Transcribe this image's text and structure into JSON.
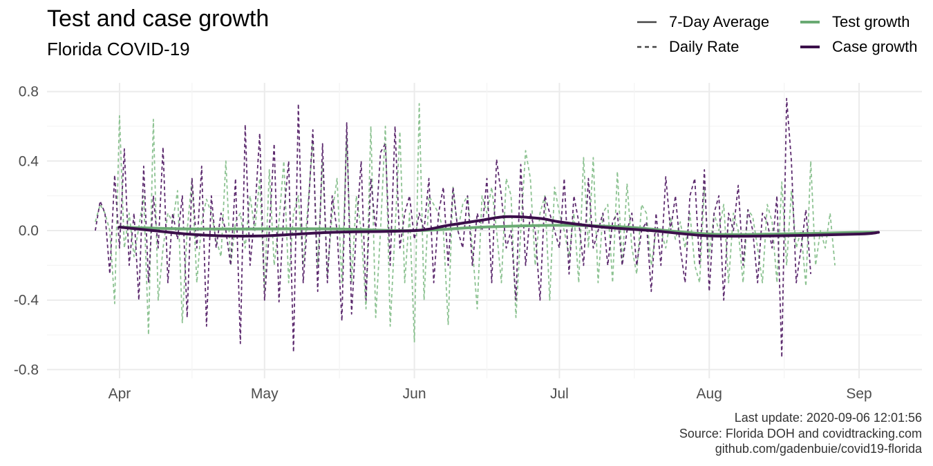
{
  "chart_data": {
    "type": "line",
    "title": "Test and case growth",
    "subtitle": "Florida COVID-19",
    "xlabel": "",
    "ylabel": "",
    "x_ticks": [
      "Apr",
      "May",
      "Jun",
      "Jul",
      "Aug",
      "Sep"
    ],
    "x_tick_dates": [
      "2020-04-01",
      "2020-05-01",
      "2020-06-01",
      "2020-07-01",
      "2020-08-01",
      "2020-09-01"
    ],
    "y_ticks": [
      "0.8",
      "0.4",
      "0.0",
      "-0.4",
      "-0.8"
    ],
    "y_tick_values": [
      0.8,
      0.4,
      0.0,
      -0.4,
      -0.8
    ],
    "xlim": [
      "2020-03-17",
      "2020-09-14"
    ],
    "ylim": [
      -0.85,
      0.85
    ],
    "grid": true,
    "legend_position": "top-right",
    "legend": {
      "linetype": [
        {
          "label": "7-Day Average",
          "style": "solid"
        },
        {
          "label": "Daily Rate",
          "style": "dashed"
        }
      ],
      "color": [
        {
          "label": "Test growth",
          "color": "#6aaa73"
        },
        {
          "label": "Case growth",
          "color": "#3b0f4a"
        }
      ]
    },
    "series": [
      {
        "name": "Test growth",
        "measure": "7-Day Average",
        "style": "solid",
        "color": "#6aaa73",
        "points": [
          [
            "2020-04-01",
            0.02
          ],
          [
            "2020-04-15",
            0.01
          ],
          [
            "2020-05-01",
            0.01
          ],
          [
            "2020-05-15",
            0.01
          ],
          [
            "2020-06-01",
            0.0
          ],
          [
            "2020-06-15",
            0.02
          ],
          [
            "2020-07-01",
            0.03
          ],
          [
            "2020-07-15",
            0.02
          ],
          [
            "2020-08-01",
            -0.02
          ],
          [
            "2020-08-15",
            -0.02
          ],
          [
            "2020-09-01",
            -0.01
          ],
          [
            "2020-09-05",
            -0.01
          ]
        ]
      },
      {
        "name": "Case growth",
        "measure": "7-Day Average",
        "style": "solid",
        "color": "#3b0f4a",
        "points": [
          [
            "2020-04-01",
            0.02
          ],
          [
            "2020-04-08",
            0.0
          ],
          [
            "2020-04-15",
            -0.02
          ],
          [
            "2020-04-22",
            -0.03
          ],
          [
            "2020-05-01",
            -0.03
          ],
          [
            "2020-05-15",
            -0.01
          ],
          [
            "2020-06-01",
            0.0
          ],
          [
            "2020-06-08",
            0.03
          ],
          [
            "2020-06-15",
            0.06
          ],
          [
            "2020-06-20",
            0.08
          ],
          [
            "2020-06-27",
            0.07
          ],
          [
            "2020-07-01",
            0.05
          ],
          [
            "2020-07-10",
            0.02
          ],
          [
            "2020-07-20",
            0.0
          ],
          [
            "2020-08-01",
            -0.03
          ],
          [
            "2020-08-15",
            -0.03
          ],
          [
            "2020-09-01",
            -0.02
          ],
          [
            "2020-09-05",
            -0.01
          ]
        ]
      },
      {
        "name": "Test growth",
        "measure": "Daily Rate",
        "style": "dashed",
        "color": "#8cc291",
        "start": "2020-03-27",
        "values": [
          0.05,
          0.15,
          0.1,
          0.0,
          -0.42,
          0.66,
          -0.1,
          0.1,
          -0.15,
          0.02,
          0.2,
          -0.6,
          0.64,
          -0.4,
          -0.1,
          0.1,
          0.05,
          0.23,
          -0.53,
          0.0,
          0.3,
          -0.3,
          0.05,
          0.18,
          0.1,
          -0.05,
          -0.15,
          0.4,
          -0.2,
          0.05,
          0.1,
          -0.1,
          0.2,
          0.0,
          0.3,
          -0.35,
          0.35,
          -0.2,
          0.05,
          0.4,
          -0.3,
          0.1,
          0.2,
          -0.2,
          0.15,
          0.52,
          -0.2,
          0.4,
          -0.25,
          0.1,
          0.3,
          -0.3,
          0.55,
          -0.3,
          0.2,
          0.0,
          -0.45,
          0.6,
          -0.5,
          0.0,
          0.6,
          -0.55,
          0.0,
          0.57,
          -0.3,
          0.1,
          -0.64,
          0.73,
          -0.4,
          0.2,
          0.15,
          0.1,
          0.0,
          -0.54,
          0.25,
          0.0,
          0.15,
          0.2,
          -0.1,
          -0.45,
          0.2,
          0.1,
          0.25,
          0.0,
          -0.3,
          0.3,
          0.2,
          -0.5,
          0.0,
          0.46,
          0.3,
          -0.2,
          0.1,
          0.2,
          -0.4,
          0.25,
          0.1,
          0.0,
          -0.15,
          0.1,
          -0.3,
          0.42,
          -0.1,
          0.42,
          -0.3,
          0.1,
          0.15,
          -0.3,
          0.34,
          -0.2,
          0.27,
          -0.1,
          -0.25,
          0.15,
          0.1,
          -0.2,
          0.0,
          0.0,
          -0.1,
          0.07,
          -0.05,
          0.05,
          -0.1,
          0.1,
          -0.2,
          -0.3,
          0.25,
          -0.15,
          0.1,
          0.0,
          0.15,
          -0.3,
          0.1,
          0.0,
          -0.3,
          0.12,
          0.08,
          -0.1,
          -0.3,
          0.15,
          0.05,
          -0.3,
          0.28,
          -0.2,
          0.23,
          -0.1,
          0.0,
          -0.32,
          0.4,
          -0.2,
          0.0,
          -0.1,
          0.1,
          -0.2
        ]
      },
      {
        "name": "Case growth",
        "measure": "Daily Rate",
        "style": "dashed",
        "color": "#5c2a6e",
        "start": "2020-03-27",
        "values": [
          0.0,
          0.17,
          0.1,
          -0.25,
          0.32,
          -0.1,
          0.47,
          -0.2,
          0.1,
          -0.4,
          0.37,
          -0.3,
          0.2,
          -0.1,
          0.48,
          -0.3,
          0.1,
          -0.05,
          0.2,
          -0.5,
          0.3,
          -0.1,
          0.37,
          -0.55,
          0.2,
          -0.1,
          0.1,
          0.0,
          -0.2,
          0.3,
          -0.65,
          0.61,
          -0.2,
          0.1,
          0.56,
          -0.4,
          0.0,
          0.5,
          -0.41,
          0.1,
          0.4,
          -0.7,
          0.73,
          -0.3,
          0.1,
          0.58,
          -0.35,
          0.5,
          -0.3,
          0.2,
          0.0,
          -0.52,
          0.62,
          -0.48,
          0.0,
          0.4,
          -0.4,
          0.3,
          0.0,
          0.45,
          0.5,
          -0.2,
          0.6,
          -0.1,
          0.1,
          0.2,
          -0.05,
          0.1,
          0.0,
          0.3,
          -0.3,
          0.1,
          0.25,
          -0.2,
          0.25,
          0.0,
          -0.1,
          0.2,
          -0.2,
          0.1,
          0.0,
          0.3,
          -0.3,
          0.41,
          0.2,
          -0.1,
          0.0,
          -0.4,
          0.38,
          -0.2,
          0.1,
          0.0,
          -0.4,
          0.2,
          0.1,
          0.0,
          -0.1,
          0.3,
          -0.25,
          0.2,
          0.05,
          -0.2,
          0.3,
          -0.1,
          0.0,
          0.1,
          -0.2,
          0.05,
          0.1,
          -0.2,
          0.0,
          0.1,
          -0.2,
          0.0,
          0.05,
          -0.35,
          0.1,
          -0.2,
          0.31,
          0.0,
          0.2,
          -0.1,
          -0.3,
          0.2,
          0.3,
          -0.2,
          0.35,
          -0.35,
          0.1,
          0.2,
          -0.4,
          0.1,
          0.0,
          0.26,
          -0.2,
          0.12,
          0.0,
          -0.3,
          0.1,
          0.05,
          -0.1,
          0.2,
          -0.73,
          0.76,
          0.4,
          -0.3,
          -0.1,
          0.12,
          -0.25
        ]
      }
    ],
    "caption": [
      "Last update: 2020-09-06 12:01:56",
      "Source: Florida DOH and covidtracking.com",
      "github.com/gadenbuie/covid19-florida"
    ]
  }
}
